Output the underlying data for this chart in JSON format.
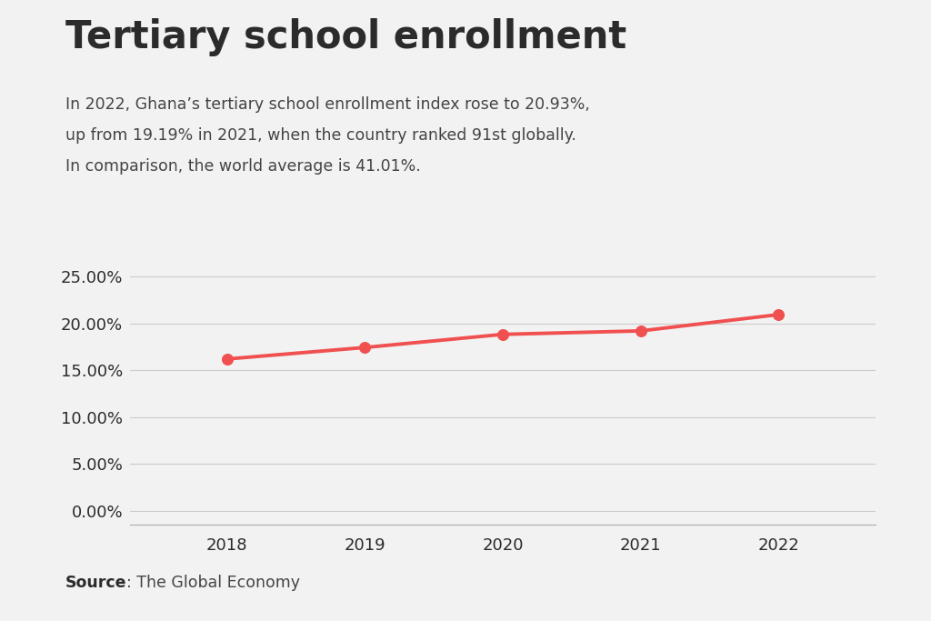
{
  "title": "Tertiary school enrollment",
  "subtitle_lines": [
    "In 2022, Ghana’s tertiary school enrollment index rose to 20.93%,",
    "up from 19.19% in 2021, when the country ranked 91st globally.",
    "In comparison, the world average is 41.01%."
  ],
  "source_bold": "Source",
  "source_text": ": The Global Economy",
  "years": [
    2018,
    2019,
    2020,
    2021,
    2022
  ],
  "values": [
    16.19,
    17.42,
    18.82,
    19.19,
    20.93
  ],
  "line_color": "#f05050",
  "marker_color": "#f05050",
  "background_color": "#f2f2f2",
  "grid_color": "#cccccc",
  "title_color": "#2b2b2b",
  "subtitle_color": "#444444",
  "tick_color": "#2b2b2b",
  "yticks": [
    0,
    5,
    10,
    15,
    20,
    25
  ],
  "ylim": [
    -1.5,
    27
  ],
  "xlim": [
    2017.3,
    2022.7
  ]
}
